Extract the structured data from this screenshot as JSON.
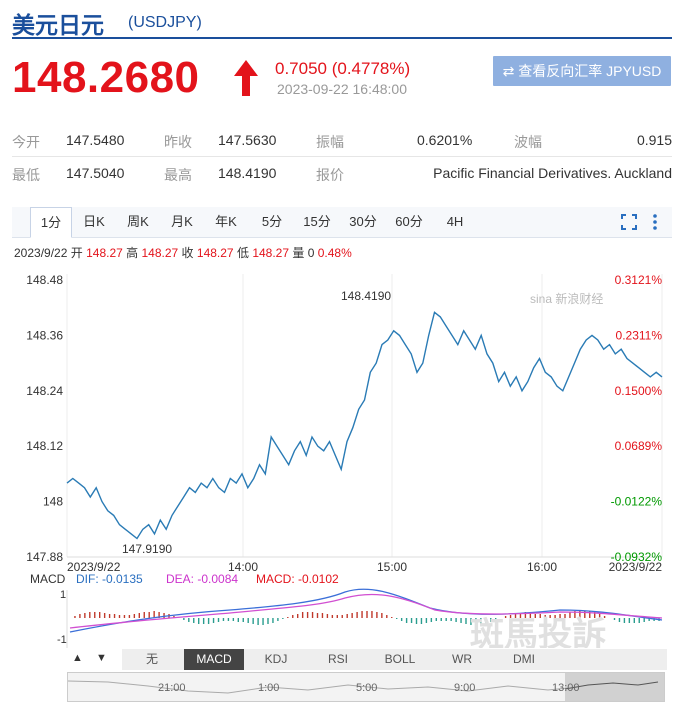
{
  "header": {
    "title_zh": "美元日元",
    "code": "(USDJPY)"
  },
  "quote": {
    "price": "148.2680",
    "change": "0.7050 (0.4778%)",
    "timestamp": "2023-09-22 16:48:00",
    "reverse_button": "⇄ 查看反向汇率 JPYUSD"
  },
  "stats": {
    "open_label": "今开",
    "open": "147.5480",
    "prev_label": "昨收",
    "prev": "147.5630",
    "amp_label": "振幅",
    "amp": "0.6201%",
    "wave_label": "波幅",
    "wave": "0.915",
    "low_label": "最低",
    "low": "147.5040",
    "high_label": "最高",
    "high": "148.4190",
    "quote_label": "报价",
    "quote_src": "Pacific Financial Derivatives. Auckland"
  },
  "tabs": [
    "1分",
    "日K",
    "周K",
    "月K",
    "年K",
    "5分",
    "15分",
    "30分",
    "60分",
    "4H"
  ],
  "ohlc": {
    "date": "2023/9/22",
    "open_l": "开",
    "open": "148.27",
    "high_l": "高",
    "high": "148.27",
    "close_l": "收",
    "close": "148.27",
    "low_l": "低",
    "low": "148.27",
    "vol_l": "量",
    "vol": "0",
    "pct": "0.48%"
  },
  "macd": {
    "label": "MACD",
    "dif": "DIF: -0.0135",
    "dea": "DEA: -0.0084",
    "macd": "MACD: -0.0102",
    "ytop": "1",
    "ybot": "-1"
  },
  "indicators": [
    "无",
    "MACD",
    "KDJ",
    "RSI",
    "BOLL",
    "WR",
    "DMI"
  ],
  "navigator": {
    "times": [
      "21:00",
      "1:00",
      "5:00",
      "9:00",
      "13:00"
    ]
  },
  "watermark": {
    "weibo": "sina 新浪财经",
    "brand": "斑馬投訴"
  },
  "colors": {
    "up": "#e3131b",
    "down": "#009900",
    "line": "#2a7bb5",
    "brand": "#1a4f9c"
  },
  "chart_data": {
    "type": "line",
    "y_ticks": [
      "148.48",
      "148.36",
      "148.24",
      "148.12",
      "148",
      "147.88"
    ],
    "pct_ticks": [
      "0.3121%",
      "0.2311%",
      "0.1500%",
      "0.0689%",
      "-0.0122%",
      "-0.0932%"
    ],
    "x_ticks": [
      "2023/9/22",
      "14:00",
      "15:00",
      "16:00",
      "2023/9/22"
    ],
    "ylim": [
      147.88,
      148.48
    ],
    "annotations": {
      "max": "148.4190",
      "min": "147.9190"
    },
    "values": [
      148.04,
      148.05,
      148.04,
      148.03,
      148.01,
      148.03,
      148.0,
      147.98,
      147.97,
      147.95,
      147.94,
      147.93,
      147.92,
      147.94,
      147.95,
      147.93,
      147.96,
      147.94,
      147.97,
      147.99,
      148.01,
      148.03,
      148.02,
      148.04,
      148.03,
      148.05,
      148.03,
      148.02,
      148.05,
      148.04,
      148.06,
      148.03,
      148.05,
      148.08,
      148.06,
      148.14,
      148.12,
      148.1,
      148.08,
      148.11,
      148.13,
      148.1,
      148.14,
      148.12,
      148.11,
      148.13,
      148.1,
      148.07,
      148.13,
      148.16,
      148.2,
      148.22,
      148.28,
      148.3,
      148.34,
      148.35,
      148.37,
      148.36,
      148.34,
      148.32,
      148.28,
      148.3,
      148.36,
      148.41,
      148.4,
      148.38,
      148.36,
      148.34,
      148.37,
      148.35,
      148.33,
      148.36,
      148.32,
      148.3,
      148.26,
      148.28,
      148.25,
      148.27,
      148.24,
      148.26,
      148.29,
      148.31,
      148.28,
      148.27,
      148.25,
      148.24,
      148.27,
      148.3,
      148.33,
      148.35,
      148.36,
      148.35,
      148.33,
      148.34,
      148.32,
      148.33,
      148.31,
      148.3,
      148.29,
      148.28,
      148.27,
      148.28,
      148.27
    ]
  }
}
